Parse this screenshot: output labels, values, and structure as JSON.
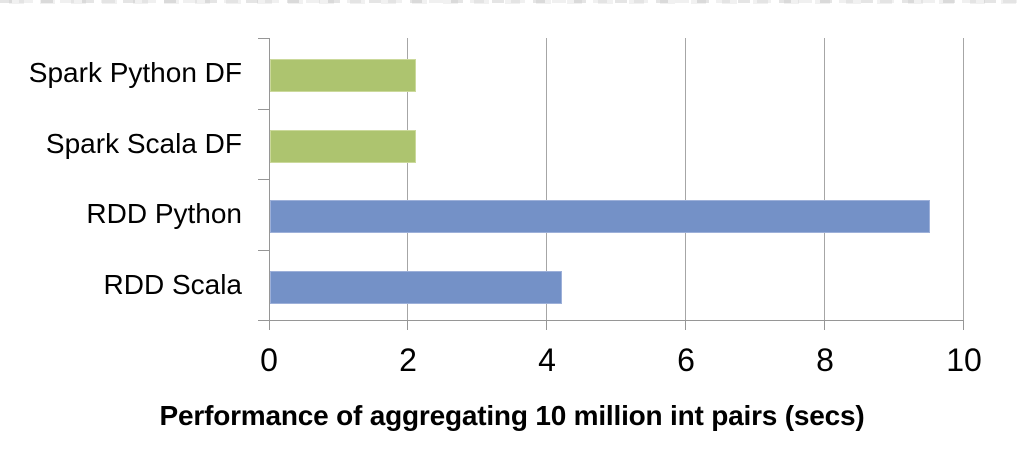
{
  "chart_data": {
    "type": "bar",
    "orientation": "horizontal",
    "title": "Performance of aggregating 10 million int pairs (secs)",
    "categories": [
      "Spark Python DF",
      "Spark Scala DF",
      "RDD Python",
      "RDD Scala"
    ],
    "values": [
      2.1,
      2.1,
      9.5,
      4.2
    ],
    "bar_colors": [
      "#ADC46F",
      "#ADC46F",
      "#7491C7",
      "#7491C7"
    ],
    "bar_border_colors": [
      "#CBD99B",
      "#CBD99B",
      "#9DB0D9",
      "#9DB0D9"
    ],
    "x_ticks": [
      0,
      2,
      4,
      6,
      8,
      10
    ],
    "xlim": [
      0,
      10
    ],
    "grid": "vertical-only",
    "gridline_color": "#A6A6A6",
    "axis_color": "#969696",
    "background_color": "#FFFFFF",
    "legend": "none"
  }
}
